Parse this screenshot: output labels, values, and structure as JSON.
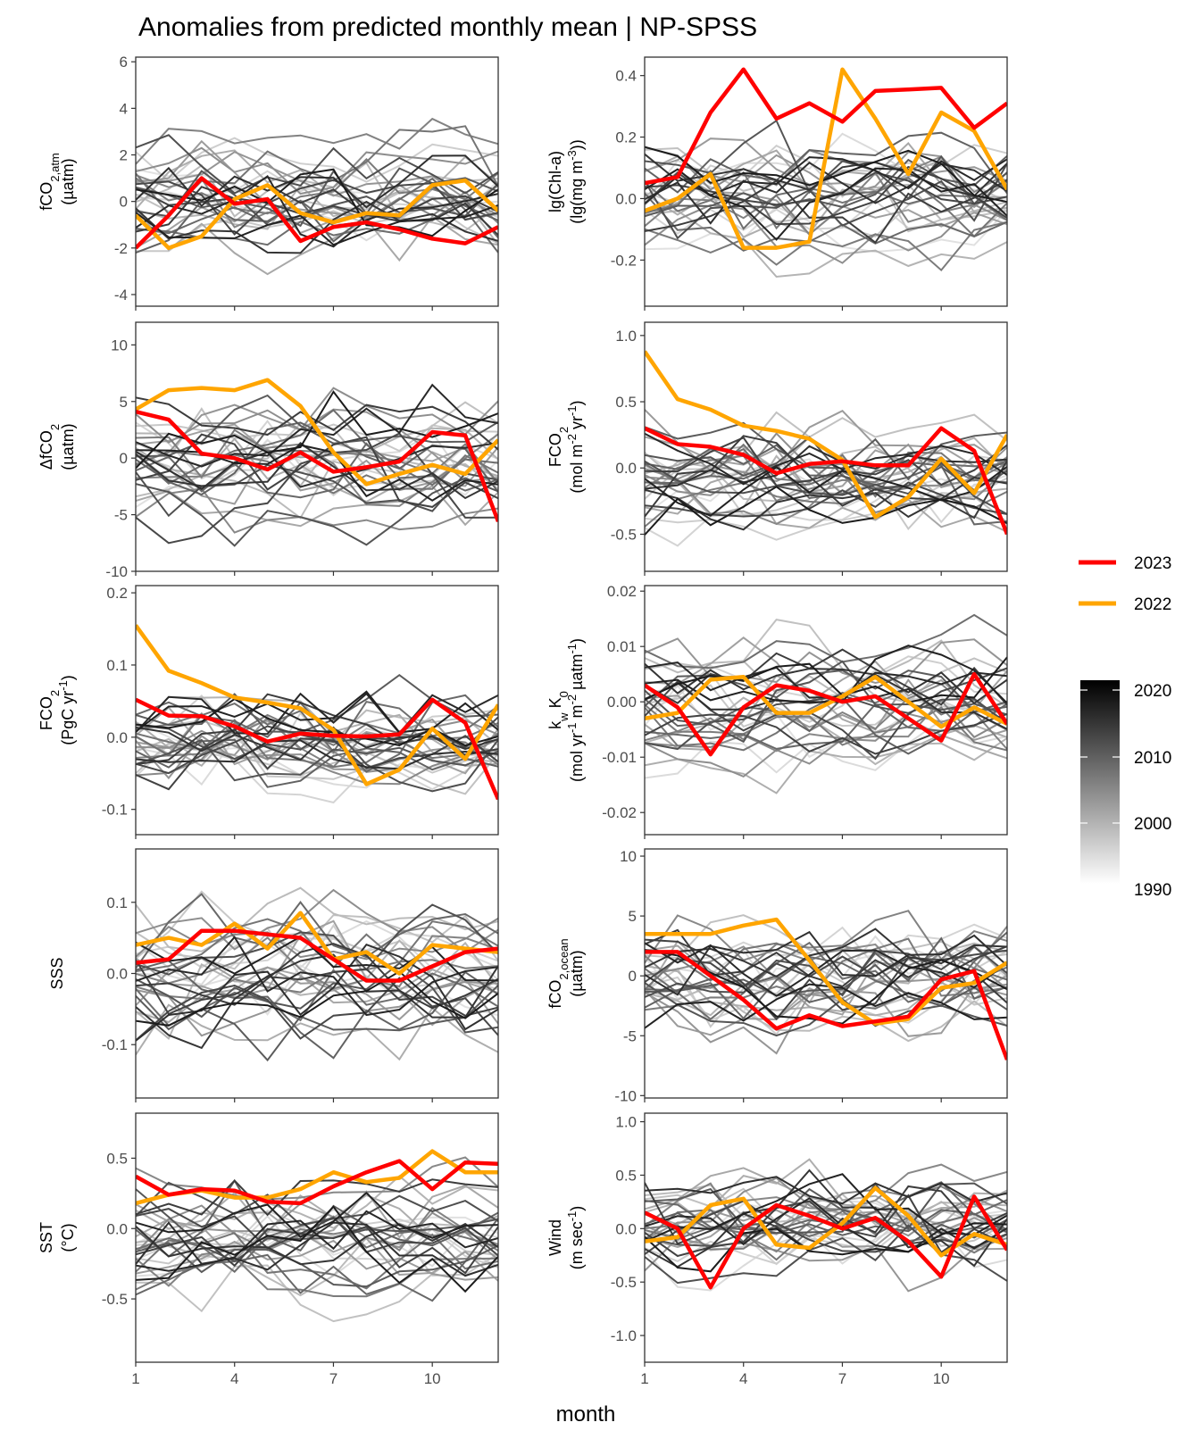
{
  "figure": {
    "title": "Anomalies from predicted monthly mean | NP-SPSS",
    "xlabel": "month"
  },
  "legend": {
    "highlight": [
      {
        "label": "2023",
        "color": "#ff0000"
      },
      {
        "label": "2022",
        "color": "#ffa500"
      }
    ],
    "colorbar": {
      "labels": [
        "2020",
        "2010",
        "2000",
        "1990"
      ],
      "low_color": "#ffffff",
      "high_color": "#000000",
      "range": [
        1990,
        2023
      ]
    }
  },
  "chart_data": [
    {
      "type": "line",
      "id": "fco2atm",
      "ylabel_lines": [
        "fCO2,atm",
        "(µatm)"
      ],
      "ylim": [
        -4.5,
        6.2
      ],
      "yticks": [
        "6",
        "4",
        "2",
        "0",
        "-2",
        "-4"
      ],
      "yvals": [
        6,
        4,
        2,
        0,
        -2,
        -4
      ],
      "xticks": [
        "1",
        "4",
        "7",
        "10"
      ],
      "amp": 1.6,
      "bias": 0,
      "series": [
        {
          "name": "2023",
          "color": "#ff0000",
          "values": [
            -2.0,
            -0.6,
            1.0,
            -0.1,
            0.1,
            -1.7,
            -1.1,
            -0.9,
            -1.2,
            -1.6,
            -1.8,
            -1.1
          ]
        },
        {
          "name": "2022",
          "color": "#ffa500",
          "values": [
            -0.6,
            -2.0,
            -1.5,
            0.1,
            0.7,
            -0.5,
            -0.9,
            -0.5,
            -0.6,
            0.7,
            0.9,
            -0.4
          ]
        }
      ]
    },
    {
      "type": "line",
      "id": "chla",
      "ylabel_lines": [
        "lg(Chl-a)",
        "(lg(mg m-3))"
      ],
      "ylim": [
        -0.35,
        0.46
      ],
      "yticks": [
        "0.4",
        "0.2",
        "0.0",
        "-0.2"
      ],
      "yvals": [
        0.4,
        0.2,
        0,
        -0.2
      ],
      "xticks": [
        "1",
        "4",
        "7",
        "10"
      ],
      "amp": 0.13,
      "bias": 0,
      "series": [
        {
          "name": "2023",
          "color": "#ff0000",
          "values": [
            0.05,
            0.07,
            0.28,
            0.42,
            0.26,
            0.31,
            0.25,
            0.35,
            0.355,
            0.36,
            0.23,
            0.31
          ]
        },
        {
          "name": "2022",
          "color": "#ffa500",
          "values": [
            -0.04,
            0.0,
            0.08,
            -0.16,
            -0.16,
            -0.14,
            0.42,
            0.26,
            0.08,
            0.28,
            0.22,
            0.03
          ]
        }
      ]
    },
    {
      "type": "line",
      "id": "dfco2",
      "ylabel_lines": [
        "ΔfCO2",
        "(µatm)"
      ],
      "ylim": [
        -10,
        12
      ],
      "yticks": [
        "10",
        "5",
        "0",
        "-5",
        "-10"
      ],
      "yvals": [
        10,
        5,
        0,
        -5,
        -10
      ],
      "xticks": [
        "1",
        "4",
        "7",
        "10"
      ],
      "amp": 3.8,
      "bias": -0.5,
      "series": [
        {
          "name": "2023",
          "color": "#ff0000",
          "values": [
            4.1,
            3.4,
            0.4,
            0.0,
            -1.0,
            0.5,
            -1.2,
            -0.8,
            -0.3,
            2.3,
            2.0,
            -5.6
          ]
        },
        {
          "name": "2022",
          "color": "#ffa500",
          "values": [
            4.3,
            6.0,
            6.2,
            6.0,
            6.9,
            4.6,
            0.5,
            -2.3,
            -1.4,
            -0.6,
            -1.4,
            1.6
          ]
        }
      ]
    },
    {
      "type": "line",
      "id": "fco2",
      "ylabel_lines": [
        "FCO2",
        "(mol m-2 yr-1)"
      ],
      "ylim": [
        -0.78,
        1.1
      ],
      "yticks": [
        "1.0",
        "0.5",
        "0.0",
        "-0.5"
      ],
      "yvals": [
        1,
        0.5,
        0,
        -0.5
      ],
      "xticks": [
        "1",
        "4",
        "7",
        "10"
      ],
      "amp": 0.28,
      "bias": -0.05,
      "series": [
        {
          "name": "2023",
          "color": "#ff0000",
          "values": [
            0.3,
            0.18,
            0.16,
            0.1,
            -0.04,
            0.03,
            0.05,
            0.02,
            0.02,
            0.3,
            0.13,
            -0.5
          ]
        },
        {
          "name": "2022",
          "color": "#ffa500",
          "values": [
            0.88,
            0.52,
            0.44,
            0.32,
            0.28,
            0.22,
            0.06,
            -0.37,
            -0.22,
            0.07,
            -0.19,
            0.25
          ]
        }
      ]
    },
    {
      "type": "line",
      "id": "fco2pg",
      "ylabel_lines": [
        "FCO2",
        "(PgC yr-1)"
      ],
      "ylim": [
        -0.135,
        0.21
      ],
      "yticks": [
        "0.2",
        "0.1",
        "0.0",
        "-0.1"
      ],
      "yvals": [
        0.2,
        0.1,
        0,
        -0.1
      ],
      "xticks": [
        "1",
        "4",
        "7",
        "10"
      ],
      "amp": 0.05,
      "bias": -0.01,
      "series": [
        {
          "name": "2023",
          "color": "#ff0000",
          "values": [
            0.052,
            0.03,
            0.029,
            0.015,
            -0.006,
            0.005,
            0.002,
            0.001,
            0.004,
            0.052,
            0.02,
            -0.086
          ]
        },
        {
          "name": "2022",
          "color": "#ffa500",
          "values": [
            0.155,
            0.092,
            0.075,
            0.055,
            0.048,
            0.04,
            0.01,
            -0.065,
            -0.045,
            0.012,
            -0.03,
            0.045
          ]
        }
      ]
    },
    {
      "type": "line",
      "id": "kwk0",
      "ylabel_lines": [
        "kw K0",
        "(mol yr-1 m-2 µatm-1)"
      ],
      "ylim": [
        -0.024,
        0.021
      ],
      "yticks": [
        "0.02",
        "0.01",
        "0.00",
        "-0.01",
        "-0.02"
      ],
      "yvals": [
        0.02,
        0.01,
        0,
        -0.01,
        -0.02
      ],
      "xticks": [
        "1",
        "4",
        "7",
        "10"
      ],
      "amp": 0.007,
      "bias": 0,
      "series": [
        {
          "name": "2023",
          "color": "#ff0000",
          "values": [
            0.003,
            -0.001,
            -0.0095,
            -0.001,
            0.003,
            0.002,
            0.0,
            0.001,
            -0.003,
            -0.007,
            0.005,
            -0.004
          ]
        },
        {
          "name": "2022",
          "color": "#ffa500",
          "values": [
            -0.003,
            -0.002,
            0.004,
            0.0045,
            -0.002,
            -0.002,
            0.001,
            0.0045,
            0.0,
            -0.0045,
            -0.001,
            -0.004
          ]
        }
      ]
    },
    {
      "type": "line",
      "id": "sss",
      "ylabel_lines": [
        "SSS"
      ],
      "ylim": [
        -0.175,
        0.175
      ],
      "yticks": [
        "0.1",
        "0.0",
        "-0.1"
      ],
      "yvals": [
        0.1,
        0,
        -0.1
      ],
      "xticks": [
        "1",
        "4",
        "7",
        "10"
      ],
      "amp": 0.06,
      "bias": -0.005,
      "series": [
        {
          "name": "2023",
          "color": "#ff0000",
          "values": [
            0.015,
            0.02,
            0.06,
            0.06,
            0.055,
            0.05,
            0.02,
            -0.01,
            -0.01,
            0.01,
            0.03,
            0.035
          ]
        },
        {
          "name": "2022",
          "color": "#ffa500",
          "values": [
            0.04,
            0.05,
            0.04,
            0.07,
            0.035,
            0.085,
            0.02,
            0.03,
            0.0,
            0.04,
            0.035,
            0.03
          ]
        }
      ]
    },
    {
      "type": "line",
      "id": "fco2ocean",
      "ylabel_lines": [
        "fCO2,ocean",
        "(µatm)"
      ],
      "ylim": [
        -10.2,
        10.6
      ],
      "yticks": [
        "10",
        "5",
        "0",
        "-5",
        "-10"
      ],
      "yvals": [
        10,
        5,
        0,
        -5,
        -10
      ],
      "xticks": [
        "1",
        "4",
        "7",
        "10"
      ],
      "amp": 3.5,
      "bias": -0.5,
      "series": [
        {
          "name": "2023",
          "color": "#ff0000",
          "values": [
            2.0,
            2.0,
            0.0,
            -2.0,
            -4.4,
            -3.3,
            -4.2,
            -3.8,
            -3.4,
            -0.3,
            0.4,
            -7.0
          ]
        },
        {
          "name": "2022",
          "color": "#ffa500",
          "values": [
            3.5,
            3.5,
            3.5,
            4.2,
            4.7,
            1.3,
            -2.2,
            -4.0,
            -3.6,
            -1.0,
            -0.6,
            1.1
          ]
        }
      ]
    },
    {
      "type": "line",
      "id": "sst",
      "ylabel_lines": [
        "SST",
        "(°C)"
      ],
      "ylim": [
        -0.95,
        0.82
      ],
      "yticks": [
        "0.5",
        "0.0",
        "-0.5"
      ],
      "yvals": [
        0.5,
        0,
        -0.5
      ],
      "xticks": [
        "1",
        "4",
        "7",
        "10"
      ],
      "amp": 0.28,
      "bias": -0.05,
      "series": [
        {
          "name": "2023",
          "color": "#ff0000",
          "values": [
            0.37,
            0.24,
            0.28,
            0.27,
            0.19,
            0.18,
            0.3,
            0.4,
            0.48,
            0.28,
            0.47,
            0.46
          ]
        },
        {
          "name": "2022",
          "color": "#ffa500",
          "values": [
            0.18,
            0.24,
            0.27,
            0.22,
            0.22,
            0.28,
            0.4,
            0.33,
            0.36,
            0.55,
            0.4,
            0.4
          ]
        }
      ]
    },
    {
      "type": "line",
      "id": "wind",
      "ylabel_lines": [
        "Wind",
        "(m sec-1)"
      ],
      "ylim": [
        -1.25,
        1.08
      ],
      "yticks": [
        "1.0",
        "0.5",
        "0.0",
        "-0.5",
        "-1.0"
      ],
      "yvals": [
        1,
        0.5,
        0,
        -0.5,
        -1
      ],
      "xticks": [
        "1",
        "4",
        "7",
        "10"
      ],
      "amp": 0.34,
      "bias": 0,
      "series": [
        {
          "name": "2023",
          "color": "#ff0000",
          "values": [
            0.15,
            0.0,
            -0.55,
            0.0,
            0.22,
            0.12,
            0.0,
            0.1,
            -0.12,
            -0.45,
            0.3,
            -0.2
          ]
        },
        {
          "name": "2022",
          "color": "#ffa500",
          "values": [
            -0.12,
            -0.08,
            0.22,
            0.28,
            -0.15,
            -0.18,
            0.05,
            0.38,
            0.12,
            -0.25,
            -0.05,
            -0.15
          ]
        }
      ]
    }
  ]
}
